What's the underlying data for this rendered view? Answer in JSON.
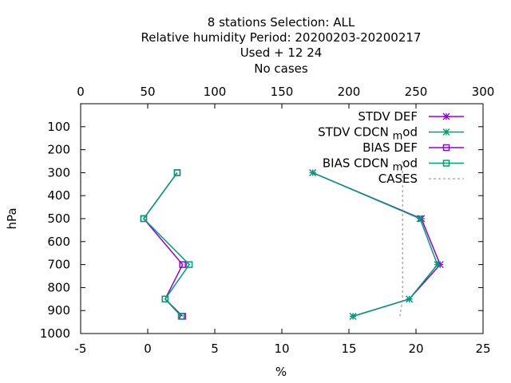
{
  "chart_data": {
    "type": "line",
    "title_lines": [
      "8 stations Selection: ALL",
      "Relative humidity  Period: 20200203-20200217",
      "Used   + 12 24",
      "No cases"
    ],
    "xlabel": "%",
    "ylabel": "hPa",
    "xlim": [
      -5,
      25
    ],
    "x2lim": [
      0,
      300
    ],
    "ylim": [
      1000,
      0
    ],
    "xticks": [
      -5,
      0,
      5,
      10,
      15,
      20,
      25
    ],
    "x2ticks": [
      0,
      50,
      100,
      150,
      200,
      250,
      300
    ],
    "yticks": [
      100,
      200,
      300,
      400,
      500,
      600,
      700,
      800,
      900,
      1000
    ],
    "legend_position": "top-right",
    "y": [
      300,
      500,
      700,
      850,
      925
    ],
    "series": [
      {
        "name": "STDV DEF",
        "marker": "star",
        "color": "#9400d3",
        "x": [
          12.3,
          20.4,
          21.8,
          19.5,
          15.3
        ]
      },
      {
        "name": "STDV CDCN mod",
        "marker": "star",
        "color": "#009e73",
        "x": [
          12.3,
          20.3,
          21.6,
          19.5,
          15.3
        ]
      },
      {
        "name": "BIAS DEF",
        "marker": "square",
        "color": "#9400d3",
        "x": [
          2.2,
          -0.3,
          2.6,
          1.3,
          2.6
        ]
      },
      {
        "name": "BIAS CDCN mod",
        "marker": "square",
        "color": "#009e73",
        "x": [
          2.2,
          -0.3,
          3.1,
          1.3,
          2.5
        ]
      },
      {
        "name": "CASES",
        "marker": "none",
        "color": "#888888",
        "dashed": true,
        "x2": [
          240,
          240,
          240,
          240,
          238
        ],
        "y": [
          250,
          500,
          700,
          850,
          925
        ]
      }
    ]
  }
}
